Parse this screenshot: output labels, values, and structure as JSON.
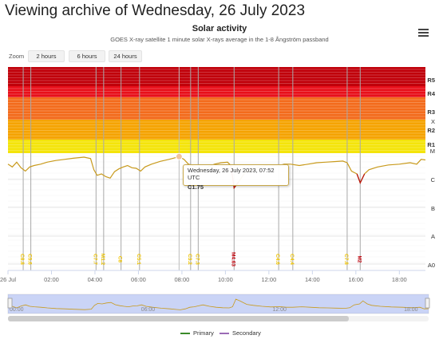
{
  "page": {
    "title": "Viewing archive of Wednesday, 26 July 2023"
  },
  "menu": {
    "icon": "hamburger-menu-icon"
  },
  "chart_header": {
    "title": "Solar activity",
    "subtitle": "GOES X-ray satellite 1 minute solar X-rays average in the 1-8 Ångström passband"
  },
  "zoom": {
    "label": "Zoom",
    "buttons": [
      "2 hours",
      "6 hours",
      "24 hours"
    ]
  },
  "tooltip": {
    "line1": "Wednesday, 26 July 2023, 07:52 UTC",
    "line2": "C1.75"
  },
  "legend": {
    "primary": "Primary",
    "secondary": "Secondary"
  },
  "chart_data": {
    "type": "line",
    "x_axis": {
      "unit": "UTC hour",
      "range": [
        0,
        19.2
      ],
      "ticks": [
        {
          "v": 0,
          "label": "26 Jul"
        },
        {
          "v": 2,
          "label": "02:00"
        },
        {
          "v": 4,
          "label": "04:00"
        },
        {
          "v": 6,
          "label": "06:00"
        },
        {
          "v": 8,
          "label": "08:00"
        },
        {
          "v": 10,
          "label": "10:00"
        },
        {
          "v": 12,
          "label": "12:00"
        },
        {
          "v": 14,
          "label": "14:00"
        },
        {
          "v": 16,
          "label": "16:00"
        },
        {
          "v": 18,
          "label": "18:00"
        }
      ]
    },
    "y_axis": {
      "scale": "log",
      "labels": [
        "A0",
        "A",
        "B",
        "C",
        "M",
        "X",
        "R1",
        "R2",
        "R3",
        "R4",
        "R5"
      ]
    },
    "bands": [
      {
        "name": "R5",
        "color": "#c0000a"
      },
      {
        "name": "R4",
        "color": "#e8101a"
      },
      {
        "name": "R3",
        "color": "#f36b1c"
      },
      {
        "name": "R2",
        "color": "#f5a300"
      },
      {
        "name": "R1",
        "color": "#f4e40a"
      }
    ],
    "series": [
      {
        "name": "Primary",
        "color": "#c89a1c",
        "points": [
          [
            0,
            0.55
          ],
          [
            0.2,
            0.45
          ],
          [
            0.4,
            0.62
          ],
          [
            0.6,
            0.42
          ],
          [
            0.8,
            0.3
          ],
          [
            1.0,
            0.45
          ],
          [
            1.2,
            0.5
          ],
          [
            1.5,
            0.55
          ],
          [
            1.8,
            0.62
          ],
          [
            2.2,
            0.68
          ],
          [
            2.6,
            0.72
          ],
          [
            3.0,
            0.76
          ],
          [
            3.5,
            0.8
          ],
          [
            3.8,
            0.75
          ],
          [
            3.95,
            0.35
          ],
          [
            4.1,
            0.15
          ],
          [
            4.3,
            0.2
          ],
          [
            4.5,
            0.1
          ],
          [
            4.7,
            0.05
          ],
          [
            4.9,
            0.28
          ],
          [
            5.1,
            0.38
          ],
          [
            5.3,
            0.45
          ],
          [
            5.5,
            0.5
          ],
          [
            5.7,
            0.42
          ],
          [
            5.9,
            0.4
          ],
          [
            6.1,
            0.3
          ],
          [
            6.3,
            0.45
          ],
          [
            6.6,
            0.55
          ],
          [
            7.0,
            0.65
          ],
          [
            7.4,
            0.72
          ],
          [
            7.7,
            0.78
          ],
          [
            7.87,
            0.82
          ],
          [
            8.1,
            0.72
          ],
          [
            8.3,
            0.55
          ],
          [
            8.5,
            0.5
          ],
          [
            8.7,
            0.4
          ],
          [
            8.9,
            0.3
          ],
          [
            9.2,
            0.45
          ],
          [
            9.5,
            0.55
          ],
          [
            9.8,
            0.6
          ],
          [
            10.1,
            0.62
          ],
          [
            10.25,
            0.5
          ],
          [
            10.4,
            -0.3
          ],
          [
            10.6,
            -0.1
          ],
          [
            10.9,
            0.25
          ],
          [
            11.2,
            0.35
          ],
          [
            11.6,
            0.45
          ],
          [
            12.0,
            0.52
          ],
          [
            12.4,
            0.48
          ],
          [
            12.7,
            0.55
          ],
          [
            13.0,
            0.55
          ],
          [
            13.4,
            0.5
          ],
          [
            13.8,
            0.55
          ],
          [
            14.2,
            0.6
          ],
          [
            14.6,
            0.62
          ],
          [
            15.0,
            0.64
          ],
          [
            15.4,
            0.66
          ],
          [
            15.6,
            0.6
          ],
          [
            15.8,
            0.3
          ],
          [
            16.05,
            0.2
          ],
          [
            16.2,
            -0.12
          ],
          [
            16.4,
            0.2
          ],
          [
            16.6,
            0.35
          ],
          [
            17.0,
            0.45
          ],
          [
            17.5,
            0.52
          ],
          [
            18.0,
            0.55
          ],
          [
            18.5,
            0.6
          ],
          [
            18.8,
            0.55
          ],
          [
            19.0,
            0.72
          ],
          [
            19.2,
            0.7
          ]
        ]
      },
      {
        "name": "Secondary",
        "color": "#9b6bb5",
        "points": []
      }
    ],
    "flares": [
      {
        "t": 0.7,
        "label": "C8.8",
        "color": "#f0c400"
      },
      {
        "t": 1.05,
        "label": "C5.6",
        "color": "#f0c400"
      },
      {
        "t": 4.05,
        "label": "C7.7",
        "color": "#f0c400"
      },
      {
        "t": 4.4,
        "label": "M1.2",
        "color": "#e8c000"
      },
      {
        "t": 5.2,
        "label": "C8",
        "color": "#f0c400"
      },
      {
        "t": 6.05,
        "label": "C5.1",
        "color": "#f0c400"
      },
      {
        "t": 8.4,
        "label": "C3.2",
        "color": "#f0c400"
      },
      {
        "t": 8.75,
        "label": "C7.3",
        "color": "#f0c400"
      },
      {
        "t": 10.4,
        "label": "M4.63",
        "color": "#c0000a"
      },
      {
        "t": 12.45,
        "label": "C4.6",
        "color": "#f0c400"
      },
      {
        "t": 13.1,
        "label": "C4.4",
        "color": "#f0c400"
      },
      {
        "t": 15.6,
        "label": "C7.8",
        "color": "#f0c400"
      },
      {
        "t": 16.2,
        "label": "M2",
        "color": "#c0000a"
      }
    ],
    "hover": {
      "t": 7.87,
      "value": "C1.75"
    },
    "navigator": {
      "ticks": [
        {
          "v": 0,
          "label": "00:00"
        },
        {
          "v": 6,
          "label": "06:00"
        },
        {
          "v": 12,
          "label": "12:00"
        },
        {
          "v": 18,
          "label": "18:00"
        }
      ],
      "selected_range": [
        0,
        19.2
      ]
    }
  }
}
